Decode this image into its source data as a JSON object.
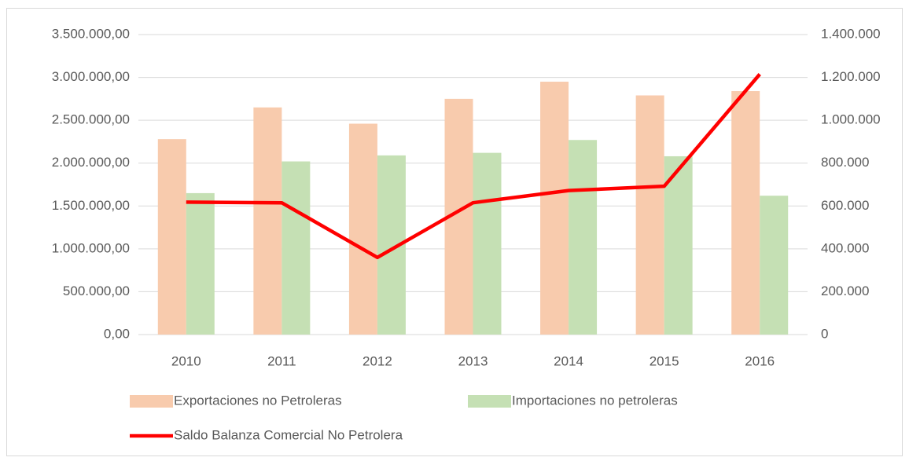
{
  "chart_data": {
    "type": "bar",
    "categories": [
      "2010",
      "2011",
      "2012",
      "2013",
      "2014",
      "2015",
      "2016"
    ],
    "series": [
      {
        "name": "Exportaciones no Petroleras",
        "color": "#f8cbad",
        "values": [
          2280000,
          2650000,
          2460000,
          2750000,
          2950000,
          2790000,
          2840000
        ]
      },
      {
        "name": "Importaciones no petroleras",
        "color": "#c5e0b4",
        "values": [
          1650000,
          2020000,
          2090000,
          2120000,
          2270000,
          2080000,
          1620000
        ]
      },
      {
        "name": "Saldo Balanza Comercial No Petrolera",
        "color": "#ff0000",
        "type": "line",
        "axis": "y2",
        "values": [
          618000,
          615000,
          360000,
          615000,
          672000,
          692000,
          1215000
        ]
      }
    ],
    "ylim": [
      0,
      3500000
    ],
    "yticks": [
      {
        "value": 0,
        "label": "0,00"
      },
      {
        "value": 500000,
        "label": "500.000,00"
      },
      {
        "value": 1000000,
        "label": "1.000.000,00"
      },
      {
        "value": 1500000,
        "label": "1.500.000,00"
      },
      {
        "value": 2000000,
        "label": "2.000.000,00"
      },
      {
        "value": 2500000,
        "label": "2.500.000,00"
      },
      {
        "value": 3000000,
        "label": "3.000.000,00"
      },
      {
        "value": 3500000,
        "label": "3.500.000,00"
      }
    ],
    "y2lim": [
      0,
      1400000
    ],
    "y2ticks": [
      0,
      {
        "value": 200000,
        "label": "200.000"
      },
      {
        "value": 400000,
        "label": "400.000"
      },
      {
        "value": 600000,
        "label": "600.000"
      },
      {
        "value": 800000,
        "label": "800.000"
      },
      {
        "value": 1000000,
        "label": "1.000.000"
      },
      {
        "value": 1200000,
        "label": "1.200.000"
      },
      {
        "value": 1400000,
        "label": "1.400.000"
      }
    ],
    "grid": true
  }
}
